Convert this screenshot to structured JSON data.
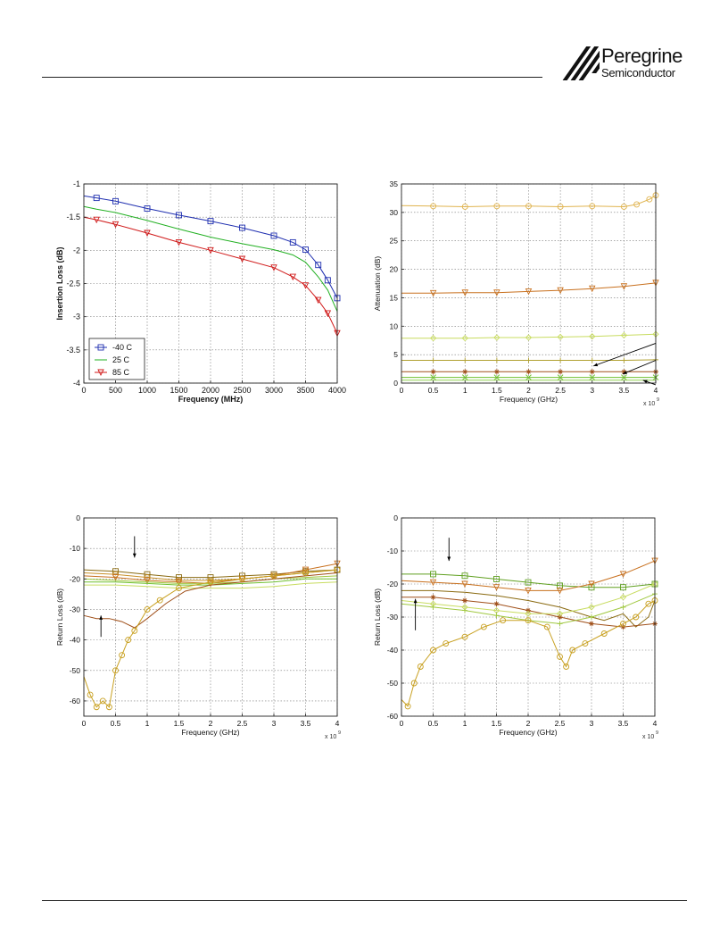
{
  "logo": {
    "brand": "Peregrine",
    "sub": "Semiconductor"
  },
  "chart_data": [
    {
      "type": "line",
      "id": "insertion-loss",
      "xlabel": "Frequency (MHz)",
      "ylabel": "Insertion Loss (dB)",
      "xlim": [
        0,
        4000
      ],
      "ylim": [
        -4,
        -1
      ],
      "xticks": [
        0,
        500,
        1000,
        1500,
        2000,
        2500,
        3000,
        3500,
        4000
      ],
      "yticks": [
        -4,
        -3.5,
        -3,
        -2.5,
        -2,
        -1.5,
        -1
      ],
      "tick_labels_x": [
        "0",
        "500",
        "1000",
        "1500",
        "2000",
        "2500",
        "3000",
        "3500",
        "4000"
      ],
      "tick_labels_y": [
        "-4",
        "-3.5",
        "-3",
        "-2.5",
        "-2",
        "-1.5",
        "-1"
      ],
      "grid": true,
      "legend": "bottom-left",
      "series": [
        {
          "name": "-40 C",
          "color": "#1f2fb0",
          "marker": "square",
          "x": [
            0,
            200,
            500,
            1000,
            1500,
            2000,
            2500,
            3000,
            3300,
            3500,
            3700,
            3850,
            4000
          ],
          "y": [
            -1.18,
            -1.21,
            -1.26,
            -1.37,
            -1.47,
            -1.56,
            -1.66,
            -1.78,
            -1.88,
            -1.99,
            -2.22,
            -2.45,
            -2.72
          ]
        },
        {
          "name": "25 C",
          "color": "#22b022",
          "marker": "none",
          "x": [
            0,
            200,
            500,
            1000,
            1500,
            2000,
            2500,
            3000,
            3300,
            3500,
            3700,
            3850,
            4000
          ],
          "y": [
            -1.34,
            -1.38,
            -1.43,
            -1.55,
            -1.68,
            -1.8,
            -1.9,
            -1.99,
            -2.07,
            -2.18,
            -2.4,
            -2.6,
            -2.92
          ]
        },
        {
          "name": "85 C",
          "color": "#d01818",
          "marker": "triangle",
          "x": [
            0,
            200,
            500,
            1000,
            1500,
            2000,
            2500,
            3000,
            3300,
            3500,
            3700,
            3850,
            4000
          ],
          "y": [
            -1.5,
            -1.54,
            -1.61,
            -1.74,
            -1.88,
            -2.0,
            -2.13,
            -2.26,
            -2.4,
            -2.53,
            -2.75,
            -2.95,
            -3.25
          ]
        }
      ]
    },
    {
      "type": "line",
      "id": "attenuation",
      "xlabel": "Frequency (GHz)",
      "ylabel": "Attenuation (dB)",
      "x_multiplier": "x 10",
      "x_multiplier_exp": "9",
      "xlim": [
        0,
        4
      ],
      "ylim": [
        0,
        35
      ],
      "xticks": [
        0,
        0.5,
        1,
        1.5,
        2,
        2.5,
        3,
        3.5,
        4
      ],
      "yticks": [
        0,
        5,
        10,
        15,
        20,
        25,
        30,
        35
      ],
      "tick_labels_x": [
        "0",
        "0.5",
        "1",
        "1.5",
        "2",
        "2.5",
        "3",
        "3.5",
        "4"
      ],
      "tick_labels_y": [
        "0",
        "5",
        "10",
        "15",
        "20",
        "25",
        "30",
        "35"
      ],
      "grid": true,
      "series": [
        {
          "color": "#e0b450",
          "marker": "circle",
          "x": [
            0,
            0.5,
            1,
            1.5,
            2,
            2.5,
            3,
            3.5,
            3.7,
            3.9,
            4
          ],
          "y": [
            31.2,
            31.1,
            31.0,
            31.1,
            31.1,
            31.0,
            31.1,
            31.0,
            31.4,
            32.3,
            33.0
          ]
        },
        {
          "color": "#c8701e",
          "marker": "triangle",
          "x": [
            0,
            0.5,
            1,
            1.5,
            2,
            2.5,
            3,
            3.5,
            4
          ],
          "y": [
            15.8,
            15.8,
            15.9,
            15.9,
            16.1,
            16.3,
            16.6,
            17.0,
            17.6
          ]
        },
        {
          "color": "#c8dc60",
          "marker": "diamond",
          "x": [
            0,
            0.5,
            1,
            1.5,
            2,
            2.5,
            3,
            3.5,
            4
          ],
          "y": [
            7.9,
            7.9,
            7.9,
            8.0,
            8.0,
            8.1,
            8.2,
            8.4,
            8.6
          ]
        },
        {
          "color": "#b0a030",
          "marker": "plus",
          "x": [
            0,
            0.5,
            1,
            1.5,
            2,
            2.5,
            3,
            3.5,
            4
          ],
          "y": [
            4.0,
            4.0,
            4.0,
            4.0,
            4.0,
            4.0,
            4.0,
            4.0,
            4.1
          ]
        },
        {
          "color": "#a0501a",
          "marker": "star",
          "x": [
            0,
            0.5,
            1,
            1.5,
            2,
            2.5,
            3,
            3.5,
            4
          ],
          "y": [
            2.0,
            2.0,
            2.0,
            2.0,
            2.0,
            2.0,
            2.0,
            2.0,
            2.0
          ]
        },
        {
          "color": "#70c030",
          "marker": "x",
          "x": [
            0,
            0.5,
            1,
            1.5,
            2,
            2.5,
            3,
            3.5,
            4
          ],
          "y": [
            1.0,
            1.0,
            1.0,
            1.0,
            1.0,
            1.0,
            1.0,
            1.0,
            1.0
          ]
        },
        {
          "color": "#90d050",
          "marker": "none",
          "x": [
            0,
            1,
            2,
            3,
            4
          ],
          "y": [
            0.5,
            0.5,
            0.5,
            0.5,
            0.5
          ]
        }
      ]
    },
    {
      "type": "line",
      "id": "return-loss-1",
      "xlabel": "Frequency (GHz)",
      "ylabel": "Return Loss (dB)",
      "x_multiplier": "x 10",
      "x_multiplier_exp": "9",
      "xlim": [
        0,
        4
      ],
      "ylim": [
        -65,
        0
      ],
      "xticks": [
        0,
        0.5,
        1,
        1.5,
        2,
        2.5,
        3,
        3.5,
        4
      ],
      "yticks": [
        -60,
        -50,
        -40,
        -30,
        -20,
        -10,
        0
      ],
      "tick_labels_x": [
        "0",
        "0.5",
        "1",
        "1.5",
        "2",
        "2.5",
        "3",
        "3.5",
        "4"
      ],
      "tick_labels_y": [
        "-60",
        "-50",
        "-40",
        "-30",
        "-20",
        "-10",
        "0"
      ],
      "grid": true,
      "series": [
        {
          "color": "#8a6a10",
          "marker": "square",
          "x": [
            0,
            0.5,
            1,
            1.5,
            2,
            2.5,
            3,
            3.5,
            4
          ],
          "y": [
            -17,
            -17.5,
            -18.5,
            -19.5,
            -19.5,
            -19,
            -18.5,
            -17.5,
            -17
          ]
        },
        {
          "color": "#c89028",
          "marker": "circle",
          "x": [
            0,
            0.5,
            1,
            1.5,
            2,
            2.5,
            3,
            3.5,
            4
          ],
          "y": [
            -18,
            -18.5,
            -19.5,
            -20.5,
            -20.5,
            -20,
            -19,
            -18,
            -17
          ]
        },
        {
          "color": "#c8701e",
          "marker": "triangle",
          "x": [
            0,
            0.5,
            1,
            1.5,
            2,
            2.5,
            3,
            3.5,
            4
          ],
          "y": [
            -19,
            -19.5,
            -20.5,
            -21,
            -21.5,
            -20,
            -19,
            -17,
            -15
          ]
        },
        {
          "color": "#a0c840",
          "marker": "none",
          "x": [
            0,
            0.5,
            1,
            1.5,
            2,
            2.5,
            3,
            3.5,
            4
          ],
          "y": [
            -20,
            -20.5,
            -21,
            -21.5,
            -21.5,
            -21,
            -20,
            -19.5,
            -19
          ]
        },
        {
          "color": "#c8dc60",
          "marker": "none",
          "x": [
            0,
            0.5,
            1,
            1.5,
            2,
            2.5,
            3,
            3.5,
            4
          ],
          "y": [
            -22,
            -22,
            -22.5,
            -23,
            -23,
            -23,
            -22.5,
            -21.5,
            -21
          ]
        },
        {
          "color": "#70c030",
          "marker": "none",
          "x": [
            0,
            0.5,
            1,
            1.5,
            2,
            2.5,
            3,
            3.5,
            4
          ],
          "y": [
            -21,
            -21,
            -21.5,
            -22,
            -22,
            -21.5,
            -21,
            -20,
            -20
          ]
        },
        {
          "color": "#a0501a",
          "marker": "none",
          "x": [
            0,
            0.2,
            0.4,
            0.6,
            0.8,
            1,
            1.3,
            1.6,
            2,
            2.5,
            3,
            3.5,
            4
          ],
          "y": [
            -32,
            -33,
            -33,
            -34,
            -36,
            -33,
            -28,
            -24,
            -22,
            -21,
            -20,
            -19,
            -18
          ]
        },
        {
          "color": "#c8a020",
          "marker": "circle",
          "x": [
            0,
            0.1,
            0.2,
            0.3,
            0.4,
            0.5,
            0.6,
            0.7,
            0.8,
            1,
            1.2,
            1.5,
            2,
            2.5,
            3,
            3.5,
            4
          ],
          "y": [
            -52,
            -58,
            -62,
            -60,
            -62,
            -50,
            -45,
            -40,
            -37,
            -30,
            -27,
            -23,
            -21,
            -20,
            -19,
            -18,
            -17
          ]
        }
      ]
    },
    {
      "type": "line",
      "id": "return-loss-2",
      "xlabel": "Frequency (GHz)",
      "ylabel": "Return Loss (dB)",
      "x_multiplier": "x 10",
      "x_multiplier_exp": "9",
      "xlim": [
        0,
        4
      ],
      "ylim": [
        -60,
        0
      ],
      "xticks": [
        0,
        0.5,
        1,
        1.5,
        2,
        2.5,
        3,
        3.5,
        4
      ],
      "yticks": [
        -60,
        -50,
        -40,
        -30,
        -20,
        -10,
        0
      ],
      "tick_labels_x": [
        "0",
        "0.5",
        "1",
        "1.5",
        "2",
        "2.5",
        "3",
        "3.5",
        "4"
      ],
      "tick_labels_y": [
        "-60",
        "-50",
        "-40",
        "-30",
        "-20",
        "-10",
        "0"
      ],
      "grid": true,
      "series": [
        {
          "color": "#60a020",
          "marker": "square",
          "x": [
            0,
            0.5,
            1,
            1.5,
            2,
            2.5,
            3,
            3.5,
            4
          ],
          "y": [
            -17,
            -17,
            -17.5,
            -18.5,
            -19.5,
            -20.5,
            -21,
            -21,
            -20
          ]
        },
        {
          "color": "#c8701e",
          "marker": "triangle",
          "x": [
            0,
            0.5,
            1,
            1.5,
            2,
            2.5,
            3,
            3.5,
            4
          ],
          "y": [
            -19,
            -19.5,
            -20,
            -21,
            -22,
            -22,
            -20,
            -17,
            -13
          ]
        },
        {
          "color": "#8a6a10",
          "marker": "none",
          "x": [
            0,
            0.5,
            1,
            1.5,
            2,
            2.5,
            3,
            3.2,
            3.5,
            3.7,
            3.9,
            4
          ],
          "y": [
            -22,
            -22,
            -22.5,
            -23.5,
            -25,
            -27,
            -30,
            -31,
            -29,
            -33,
            -30,
            -25
          ]
        },
        {
          "color": "#a0501a",
          "marker": "star",
          "x": [
            0,
            0.5,
            1,
            1.5,
            2,
            2.5,
            3,
            3.5,
            4
          ],
          "y": [
            -24,
            -24,
            -25,
            -26,
            -28,
            -30,
            -32,
            -33,
            -32
          ]
        },
        {
          "color": "#c8dc60",
          "marker": "diamond",
          "x": [
            0,
            0.5,
            1,
            1.5,
            2,
            2.5,
            3,
            3.5,
            4
          ],
          "y": [
            -25,
            -26,
            -27,
            -28,
            -29,
            -29,
            -27,
            -24,
            -20
          ]
        },
        {
          "color": "#a0c840",
          "marker": "plus",
          "x": [
            0,
            0.5,
            1,
            1.5,
            2,
            2.5,
            3,
            3.5,
            4
          ],
          "y": [
            -26,
            -27,
            -28,
            -29.5,
            -31,
            -32,
            -30,
            -27,
            -23
          ]
        },
        {
          "color": "#c8a020",
          "marker": "circle",
          "x": [
            0,
            0.1,
            0.2,
            0.3,
            0.5,
            0.7,
            1,
            1.3,
            1.6,
            2,
            2.3,
            2.5,
            2.6,
            2.7,
            2.9,
            3.2,
            3.5,
            3.7,
            3.9,
            4
          ],
          "y": [
            -55,
            -57,
            -50,
            -45,
            -40,
            -38,
            -36,
            -33,
            -31,
            -31,
            -33,
            -42,
            -45,
            -40,
            -38,
            -35,
            -32,
            -30,
            -26,
            -25
          ]
        }
      ]
    }
  ]
}
